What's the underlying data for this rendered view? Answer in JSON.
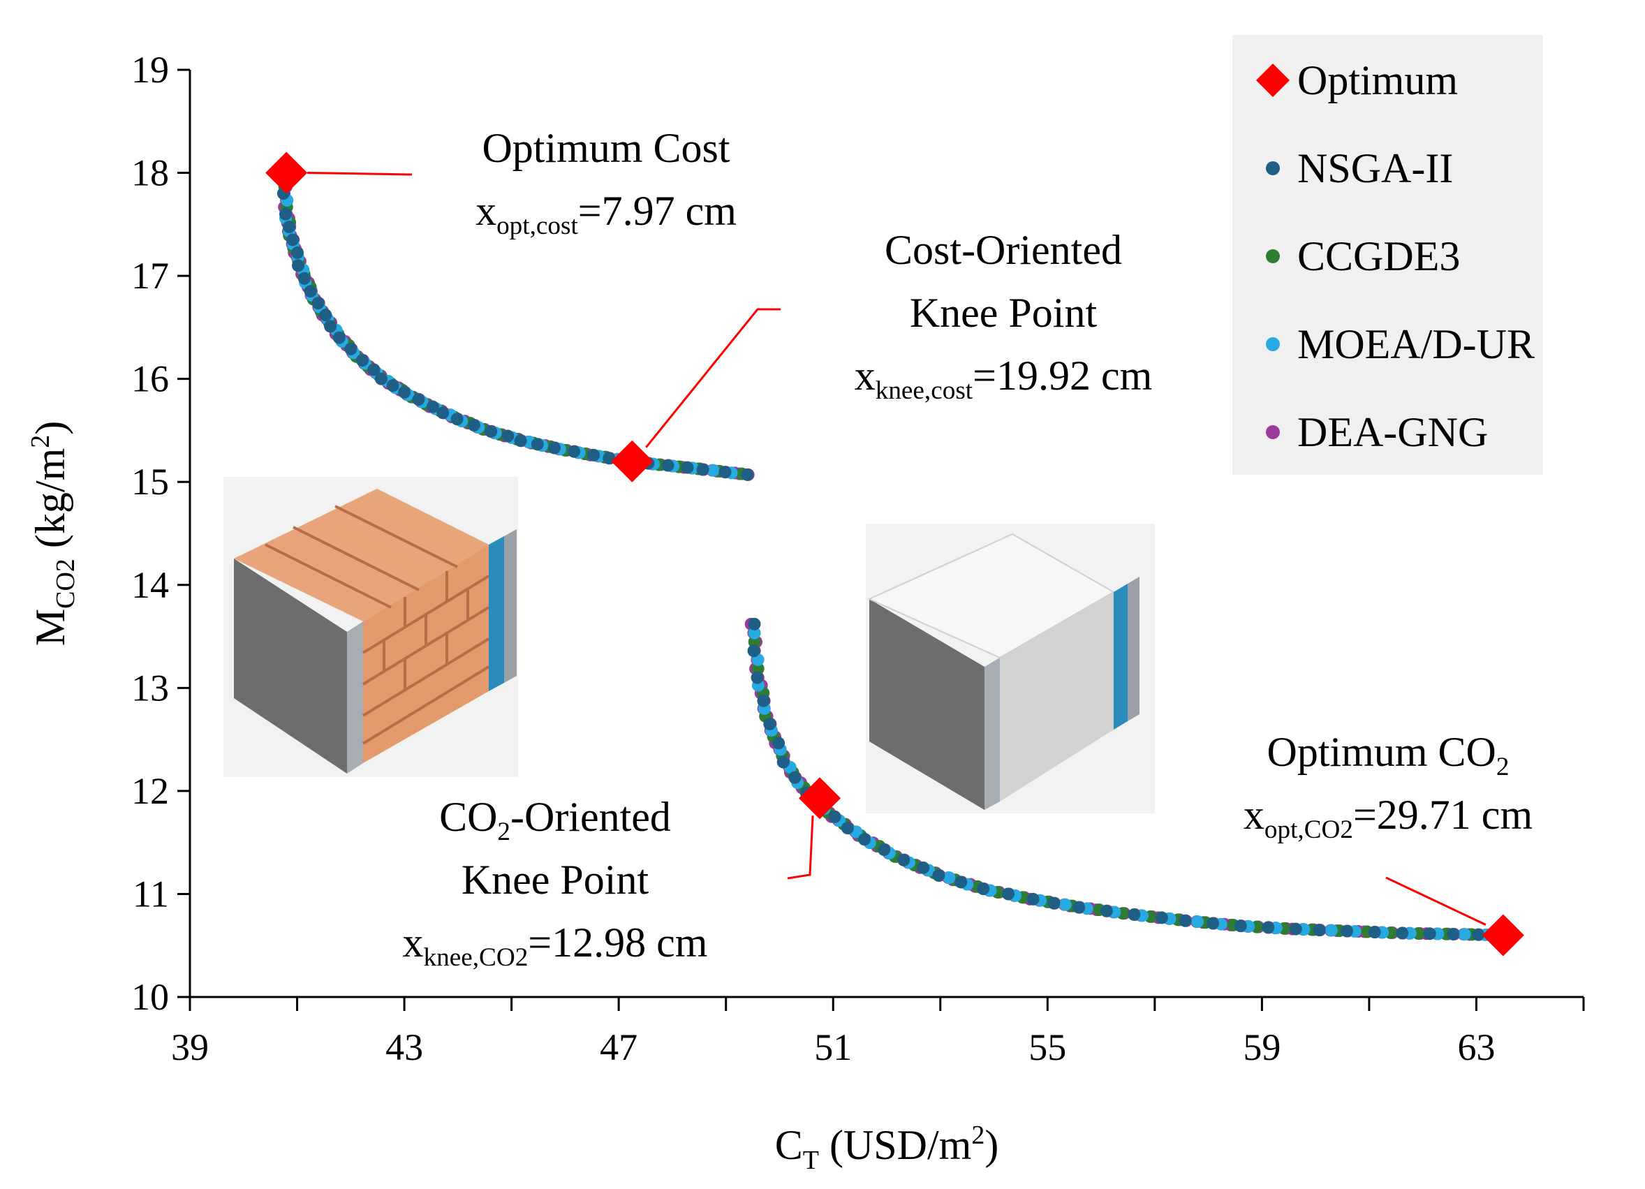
{
  "chart_data": {
    "type": "scatter",
    "xlabel": {
      "main": "C",
      "sub": "T",
      "unit_pre": " (USD/m",
      "sup": "2",
      "unit_post": ")"
    },
    "ylabel": {
      "main": "M",
      "sub": "CO2",
      "unit_pre": " (kg/m",
      "sup": "2",
      "unit_post": ")"
    },
    "xlim": [
      39,
      65
    ],
    "ylim": [
      10,
      19
    ],
    "x_ticks": [
      39,
      43,
      47,
      51,
      55,
      59,
      63
    ],
    "x_minor_ticks": [
      41,
      45,
      49,
      53,
      57,
      61,
      65
    ],
    "y_ticks": [
      10,
      11,
      12,
      13,
      14,
      15,
      16,
      17,
      18,
      19
    ],
    "legend": {
      "position": "top-right",
      "entries": [
        {
          "label": "Optimum",
          "marker": "diamond",
          "color": "#ff0000"
        },
        {
          "label": "NSGA-II",
          "marker": "circle",
          "color": "#1f5f86"
        },
        {
          "label": "CCGDE3",
          "marker": "circle",
          "color": "#2e7d32"
        },
        {
          "label": "MOEA/D-UR",
          "marker": "circle",
          "color": "#27a9e1"
        },
        {
          "label": "DEA-GNG",
          "marker": "circle",
          "color": "#9b3a9b"
        }
      ]
    },
    "fronts": [
      {
        "name": "brick wall front",
        "points": [
          [
            40.75,
            18.0
          ],
          [
            40.8,
            17.6
          ],
          [
            40.9,
            17.35
          ],
          [
            41.05,
            17.1
          ],
          [
            41.25,
            16.85
          ],
          [
            41.5,
            16.62
          ],
          [
            41.8,
            16.4
          ],
          [
            42.2,
            16.18
          ],
          [
            42.6,
            16.0
          ],
          [
            43.0,
            15.87
          ],
          [
            43.5,
            15.73
          ],
          [
            44.0,
            15.61
          ],
          [
            44.6,
            15.49
          ],
          [
            45.2,
            15.4
          ],
          [
            45.8,
            15.33
          ],
          [
            46.5,
            15.26
          ],
          [
            47.2,
            15.2
          ],
          [
            47.9,
            15.16
          ],
          [
            48.6,
            15.12
          ],
          [
            49.4,
            15.07
          ]
        ]
      },
      {
        "name": "insulation panel front",
        "points": [
          [
            49.5,
            13.62
          ],
          [
            49.6,
            13.1
          ],
          [
            49.8,
            12.65
          ],
          [
            50.1,
            12.28
          ],
          [
            50.5,
            11.98
          ],
          [
            51.0,
            11.75
          ],
          [
            51.6,
            11.53
          ],
          [
            52.3,
            11.33
          ],
          [
            53.0,
            11.18
          ],
          [
            53.8,
            11.05
          ],
          [
            54.7,
            10.95
          ],
          [
            55.6,
            10.87
          ],
          [
            56.6,
            10.8
          ],
          [
            57.6,
            10.74
          ],
          [
            58.6,
            10.69
          ],
          [
            59.6,
            10.66
          ],
          [
            60.6,
            10.64
          ],
          [
            61.6,
            10.62
          ],
          [
            62.6,
            10.61
          ],
          [
            63.5,
            10.6
          ]
        ]
      }
    ],
    "optima": [
      {
        "id": "optimum-cost",
        "x": 40.8,
        "y": 18.0,
        "lines": [
          {
            "main": "Optimum Cost"
          },
          {
            "main": "x",
            "sub": "opt,cost",
            "rest": "=7.97 cm"
          }
        ]
      },
      {
        "id": "cost-knee",
        "x": 47.25,
        "y": 15.2,
        "lines": [
          {
            "main": "Cost-Oriented"
          },
          {
            "main": "Knee Point"
          },
          {
            "main": "x",
            "sub": "knee,cost",
            "rest": "=19.92 cm"
          }
        ]
      },
      {
        "id": "co2-knee",
        "x": 50.75,
        "y": 11.93,
        "lines": [
          {
            "main": "CO",
            "sub": "2",
            "rest": "-Oriented"
          },
          {
            "main": "Knee Point"
          },
          {
            "main": "x",
            "sub": "knee,CO2",
            "rest": "=12.98 cm"
          }
        ]
      },
      {
        "id": "optimum-co2",
        "x": 63.5,
        "y": 10.6,
        "lines": [
          {
            "main": "Optimum CO",
            "sub": "2"
          },
          {
            "main": "x",
            "sub": "opt,CO2",
            "rest": "=29.71 cm"
          }
        ]
      }
    ]
  }
}
